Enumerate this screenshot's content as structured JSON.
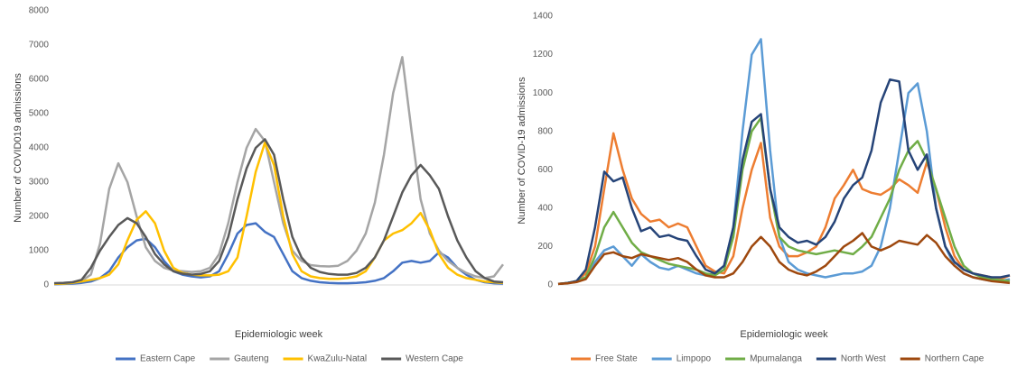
{
  "chart_data": [
    {
      "type": "line",
      "y_label": "Number of COVID019 admissions",
      "x_label": "Epidemiologic week",
      "categories": [
        null,
        null,
        null,
        null,
        null,
        null,
        null,
        null,
        null,
        null,
        null,
        null,
        null,
        null,
        null,
        null,
        null,
        null,
        null,
        null,
        null,
        null,
        null,
        null,
        null,
        null,
        null,
        null,
        null,
        null,
        null,
        null,
        null,
        null,
        null,
        null,
        null,
        null,
        null,
        null,
        null,
        null,
        null,
        null,
        null,
        null,
        null,
        null,
        null,
        null
      ],
      "ylim": [
        0,
        8000
      ],
      "yticks": [
        0,
        1000,
        2000,
        3000,
        4000,
        5000,
        6000,
        7000,
        8000
      ],
      "legend": "bottom",
      "series": [
        {
          "name": "Eastern Cape",
          "color": "#4472c4",
          "values": [
            20,
            30,
            40,
            60,
            100,
            200,
            400,
            800,
            1100,
            1300,
            1350,
            1100,
            700,
            400,
            300,
            250,
            220,
            250,
            400,
            900,
            1500,
            1750,
            1800,
            1550,
            1400,
            900,
            400,
            200,
            120,
            80,
            60,
            50,
            50,
            60,
            80,
            120,
            200,
            400,
            650,
            700,
            650,
            700,
            950,
            800,
            500,
            300,
            150,
            80,
            50,
            40
          ]
        },
        {
          "name": "Gauteng",
          "color": "#a5a5a5",
          "values": [
            50,
            60,
            80,
            120,
            300,
            1200,
            2800,
            3550,
            3000,
            2000,
            1100,
            700,
            500,
            420,
            400,
            380,
            400,
            500,
            900,
            1800,
            3000,
            4000,
            4550,
            4200,
            3000,
            1800,
            1000,
            700,
            580,
            550,
            540,
            560,
            700,
            1000,
            1500,
            2400,
            3800,
            5600,
            6650,
            4500,
            2500,
            1500,
            1000,
            700,
            500,
            350,
            250,
            200,
            250,
            600
          ]
        },
        {
          "name": "KwaZulu-Natal",
          "color": "#ffc000",
          "values": [
            30,
            40,
            60,
            100,
            150,
            200,
            300,
            600,
            1300,
            1900,
            2150,
            1800,
            1000,
            500,
            350,
            300,
            280,
            280,
            300,
            400,
            800,
            2000,
            3300,
            4150,
            3500,
            2000,
            900,
            400,
            250,
            200,
            180,
            180,
            200,
            250,
            400,
            800,
            1300,
            1500,
            1600,
            1800,
            2100,
            1600,
            900,
            500,
            300,
            200,
            150,
            100,
            80,
            60
          ]
        },
        {
          "name": "Western Cape",
          "color": "#595959",
          "values": [
            50,
            60,
            80,
            150,
            500,
            1000,
            1400,
            1750,
            1950,
            1800,
            1400,
            900,
            600,
            400,
            330,
            300,
            320,
            400,
            700,
            1400,
            2500,
            3400,
            4000,
            4250,
            3800,
            2500,
            1400,
            800,
            500,
            380,
            320,
            300,
            300,
            350,
            500,
            800,
            1300,
            2000,
            2700,
            3200,
            3500,
            3200,
            2800,
            2000,
            1300,
            800,
            400,
            200,
            100,
            80
          ]
        }
      ]
    },
    {
      "type": "line",
      "y_label": "Number of COVID-19 admissions",
      "x_label": "Epidemiologic week",
      "categories": [
        null,
        null,
        null,
        null,
        null,
        null,
        null,
        null,
        null,
        null,
        null,
        null,
        null,
        null,
        null,
        null,
        null,
        null,
        null,
        null,
        null,
        null,
        null,
        null,
        null,
        null,
        null,
        null,
        null,
        null,
        null,
        null,
        null,
        null,
        null,
        null,
        null,
        null,
        null,
        null,
        null,
        null,
        null,
        null,
        null,
        null,
        null,
        null,
        null,
        null
      ],
      "ylim": [
        0,
        1400
      ],
      "yticks": [
        0,
        200,
        400,
        600,
        800,
        1000,
        1200,
        1400
      ],
      "legend": "bottom",
      "series": [
        {
          "name": "Free State",
          "color": "#ed7d31",
          "values": [
            5,
            10,
            20,
            60,
            200,
            500,
            790,
            600,
            450,
            370,
            330,
            340,
            300,
            320,
            300,
            200,
            100,
            70,
            60,
            150,
            400,
            600,
            740,
            350,
            200,
            150,
            150,
            170,
            200,
            300,
            450,
            520,
            600,
            500,
            480,
            470,
            500,
            550,
            520,
            480,
            640,
            500,
            300,
            150,
            80,
            60,
            50,
            40,
            30,
            50
          ]
        },
        {
          "name": "Limpopo",
          "color": "#5b9bd5",
          "values": [
            5,
            10,
            20,
            40,
            120,
            180,
            200,
            150,
            100,
            160,
            120,
            90,
            80,
            100,
            80,
            60,
            50,
            60,
            100,
            300,
            800,
            1200,
            1280,
            700,
            250,
            120,
            80,
            60,
            50,
            40,
            50,
            60,
            60,
            70,
            100,
            200,
            400,
            700,
            1000,
            1050,
            800,
            400,
            200,
            100,
            60,
            40,
            30,
            20,
            20,
            30
          ]
        },
        {
          "name": "Mpumalanga",
          "color": "#70ad47",
          "values": [
            5,
            10,
            20,
            40,
            150,
            300,
            380,
            300,
            220,
            170,
            150,
            130,
            110,
            100,
            90,
            80,
            60,
            50,
            80,
            250,
            600,
            800,
            870,
            500,
            250,
            200,
            180,
            170,
            160,
            170,
            180,
            170,
            160,
            200,
            250,
            350,
            450,
            600,
            700,
            750,
            650,
            500,
            350,
            200,
            100,
            60,
            40,
            30,
            25,
            20
          ]
        },
        {
          "name": "North West",
          "color": "#264478",
          "values": [
            5,
            10,
            20,
            80,
            300,
            590,
            540,
            560,
            400,
            280,
            300,
            250,
            260,
            240,
            230,
            150,
            80,
            60,
            100,
            300,
            650,
            850,
            890,
            500,
            300,
            250,
            220,
            230,
            210,
            250,
            330,
            450,
            520,
            560,
            700,
            950,
            1070,
            1060,
            700,
            600,
            680,
            400,
            200,
            120,
            80,
            60,
            50,
            40,
            40,
            50
          ]
        },
        {
          "name": "Northern Cape",
          "color": "#9e480e",
          "values": [
            5,
            8,
            15,
            30,
            100,
            160,
            170,
            150,
            140,
            160,
            150,
            140,
            130,
            140,
            120,
            80,
            50,
            40,
            40,
            60,
            120,
            200,
            250,
            200,
            120,
            80,
            60,
            50,
            70,
            100,
            150,
            200,
            230,
            270,
            200,
            180,
            200,
            230,
            220,
            210,
            260,
            220,
            150,
            100,
            60,
            40,
            30,
            20,
            15,
            10
          ]
        }
      ]
    }
  ]
}
